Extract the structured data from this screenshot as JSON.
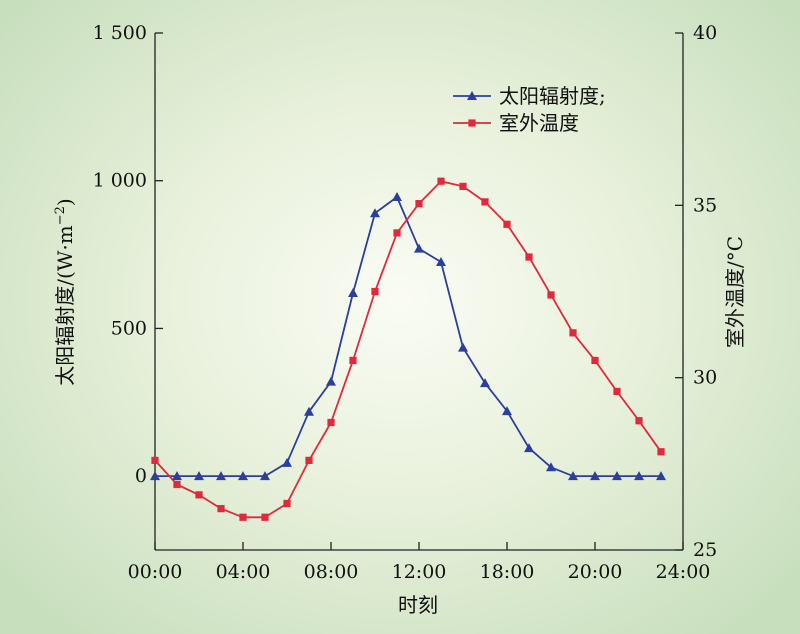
{
  "chart_data": {
    "type": "line",
    "xlabel": "时刻",
    "x_ticks": [
      "00:00",
      "04:00",
      "08:00",
      "12:00",
      "18:00",
      "20:00",
      "24:00"
    ],
    "x": [
      0,
      1,
      2,
      3,
      4,
      5,
      6,
      7,
      8,
      9,
      10,
      11,
      12,
      13,
      14,
      15,
      16,
      17,
      18,
      19,
      20,
      21,
      22,
      23
    ],
    "y_left": {
      "label_main": "太阳辐射度/(W·m",
      "label_sup": "−2",
      "label_close": ")",
      "ticks": [
        "0",
        "500",
        "1 000",
        "1 500"
      ],
      "tick_values": [
        0,
        500,
        1000,
        1500
      ],
      "ylim": [
        -250,
        1500
      ]
    },
    "y_right": {
      "label": "室外温度/°C",
      "ticks": [
        "25",
        "30",
        "35",
        "40"
      ],
      "tick_values": [
        25,
        30,
        35,
        40
      ],
      "ylim": [
        25,
        40
      ]
    },
    "series": [
      {
        "name": "太阳辐射度;",
        "axis": "left",
        "marker": "triangle",
        "color": "#2a3f9e",
        "values": [
          0,
          0,
          0,
          0,
          0,
          0,
          45,
          218,
          320,
          620,
          890,
          945,
          770,
          725,
          435,
          315,
          220,
          95,
          30,
          0,
          0,
          0,
          0,
          0
        ]
      },
      {
        "name": "室外温度",
        "axis": "right",
        "marker": "square",
        "color": "#e0293a",
        "values": [
          27.6,
          26.9,
          26.6,
          26.2,
          25.95,
          25.95,
          26.35,
          27.6,
          28.7,
          30.5,
          32.5,
          34.2,
          35.05,
          35.7,
          35.55,
          35.1,
          34.45,
          33.5,
          32.4,
          31.3,
          30.5,
          29.6,
          28.75,
          27.85
        ]
      }
    ],
    "legend": "top-right",
    "grid": false
  }
}
